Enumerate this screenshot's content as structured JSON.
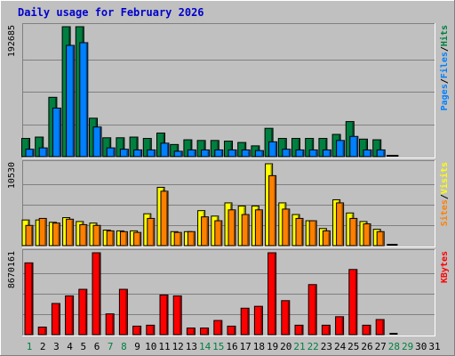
{
  "title": "Daily usage for February 2026",
  "colors": {
    "title": "#0000cc",
    "hits": "#008040",
    "files": "#0080ff",
    "sites": "#ff8000",
    "visits": "#ffff00",
    "kbytes": "#ff0000",
    "slash": "#000000",
    "weekend_day": "#008040",
    "weekday_day": "#000000",
    "panel": "#c0c0c0"
  },
  "chart_data": [
    {
      "type": "bar",
      "name": "hits-files",
      "scale_label": "192685",
      "ymax": 192685,
      "legend": [
        "Pages",
        "Files",
        "Hits"
      ],
      "x": [
        1,
        2,
        3,
        4,
        5,
        6,
        7,
        8,
        9,
        10,
        11,
        12,
        13,
        14,
        15,
        16,
        17,
        18,
        19,
        20,
        21,
        22,
        23,
        24,
        25,
        26,
        27,
        28
      ],
      "series": [
        {
          "name": "Hits",
          "color_key": "hits",
          "values": [
            27000,
            29000,
            88000,
            192685,
            192685,
            57000,
            28000,
            28000,
            29000,
            27000,
            35000,
            18000,
            25000,
            24000,
            24000,
            23000,
            21000,
            16000,
            42000,
            27000,
            27000,
            27000,
            27000,
            33000,
            52000,
            26000,
            25000,
            0
          ]
        },
        {
          "name": "Files",
          "color_key": "files",
          "values": [
            11000,
            13000,
            72000,
            165000,
            169000,
            44000,
            13000,
            11000,
            10000,
            10000,
            20000,
            8000,
            10000,
            10000,
            10000,
            10000,
            10000,
            9000,
            22000,
            11000,
            10000,
            10000,
            10000,
            24000,
            30000,
            10000,
            10000,
            0
          ]
        }
      ]
    },
    {
      "type": "bar",
      "name": "visits-sites",
      "scale_label": "10530",
      "ymax": 10530,
      "legend": [
        "Sites",
        "Visits"
      ],
      "x": [
        1,
        2,
        3,
        4,
        5,
        6,
        7,
        8,
        9,
        10,
        11,
        12,
        13,
        14,
        15,
        16,
        17,
        18,
        19,
        20,
        21,
        22,
        23,
        24,
        25,
        26,
        27,
        28
      ],
      "series": [
        {
          "name": "Visits",
          "color_key": "visits",
          "values": [
            3300,
            3300,
            3000,
            3600,
            3100,
            2900,
            2000,
            1900,
            1900,
            4100,
            7500,
            1800,
            1800,
            4500,
            3800,
            5500,
            5100,
            5100,
            10530,
            5500,
            4000,
            3200,
            2200,
            5900,
            4200,
            3100,
            2100,
            0
          ]
        },
        {
          "name": "Sites",
          "color_key": "sites",
          "values": [
            2600,
            3500,
            2900,
            3400,
            2700,
            2600,
            1900,
            1800,
            1700,
            3500,
            7000,
            1700,
            1800,
            3700,
            3200,
            4600,
            4000,
            4600,
            9000,
            4700,
            3500,
            3200,
            1900,
            5500,
            3500,
            2800,
            1800,
            0
          ]
        }
      ]
    },
    {
      "type": "bar",
      "name": "kbytes",
      "scale_label": "8670161",
      "ymax": 8670161,
      "legend": [
        "KBytes"
      ],
      "x": [
        1,
        2,
        3,
        4,
        5,
        6,
        7,
        8,
        9,
        10,
        11,
        12,
        13,
        14,
        15,
        16,
        17,
        18,
        19,
        20,
        21,
        22,
        23,
        24,
        25,
        26,
        27,
        28
      ],
      "series": [
        {
          "name": "KBytes",
          "color_key": "kbytes",
          "values": [
            7600000,
            800000,
            3300000,
            4100000,
            4800000,
            8670161,
            2200000,
            4800000,
            900000,
            1000000,
            4200000,
            4100000,
            700000,
            700000,
            1500000,
            900000,
            2800000,
            3000000,
            8670161,
            3600000,
            1000000,
            5300000,
            1000000,
            1900000,
            6900000,
            1000000,
            1600000,
            0
          ]
        }
      ]
    }
  ],
  "days": [
    "1",
    "2",
    "3",
    "4",
    "5",
    "6",
    "7",
    "8",
    "9",
    "10",
    "11",
    "12",
    "13",
    "14",
    "15",
    "16",
    "17",
    "18",
    "19",
    "20",
    "21",
    "22",
    "23",
    "24",
    "25",
    "26",
    "27",
    "28",
    "29",
    "30",
    "31"
  ],
  "weekend_days": [
    "1",
    "7",
    "8",
    "14",
    "15",
    "21",
    "22",
    "28",
    "29"
  ]
}
